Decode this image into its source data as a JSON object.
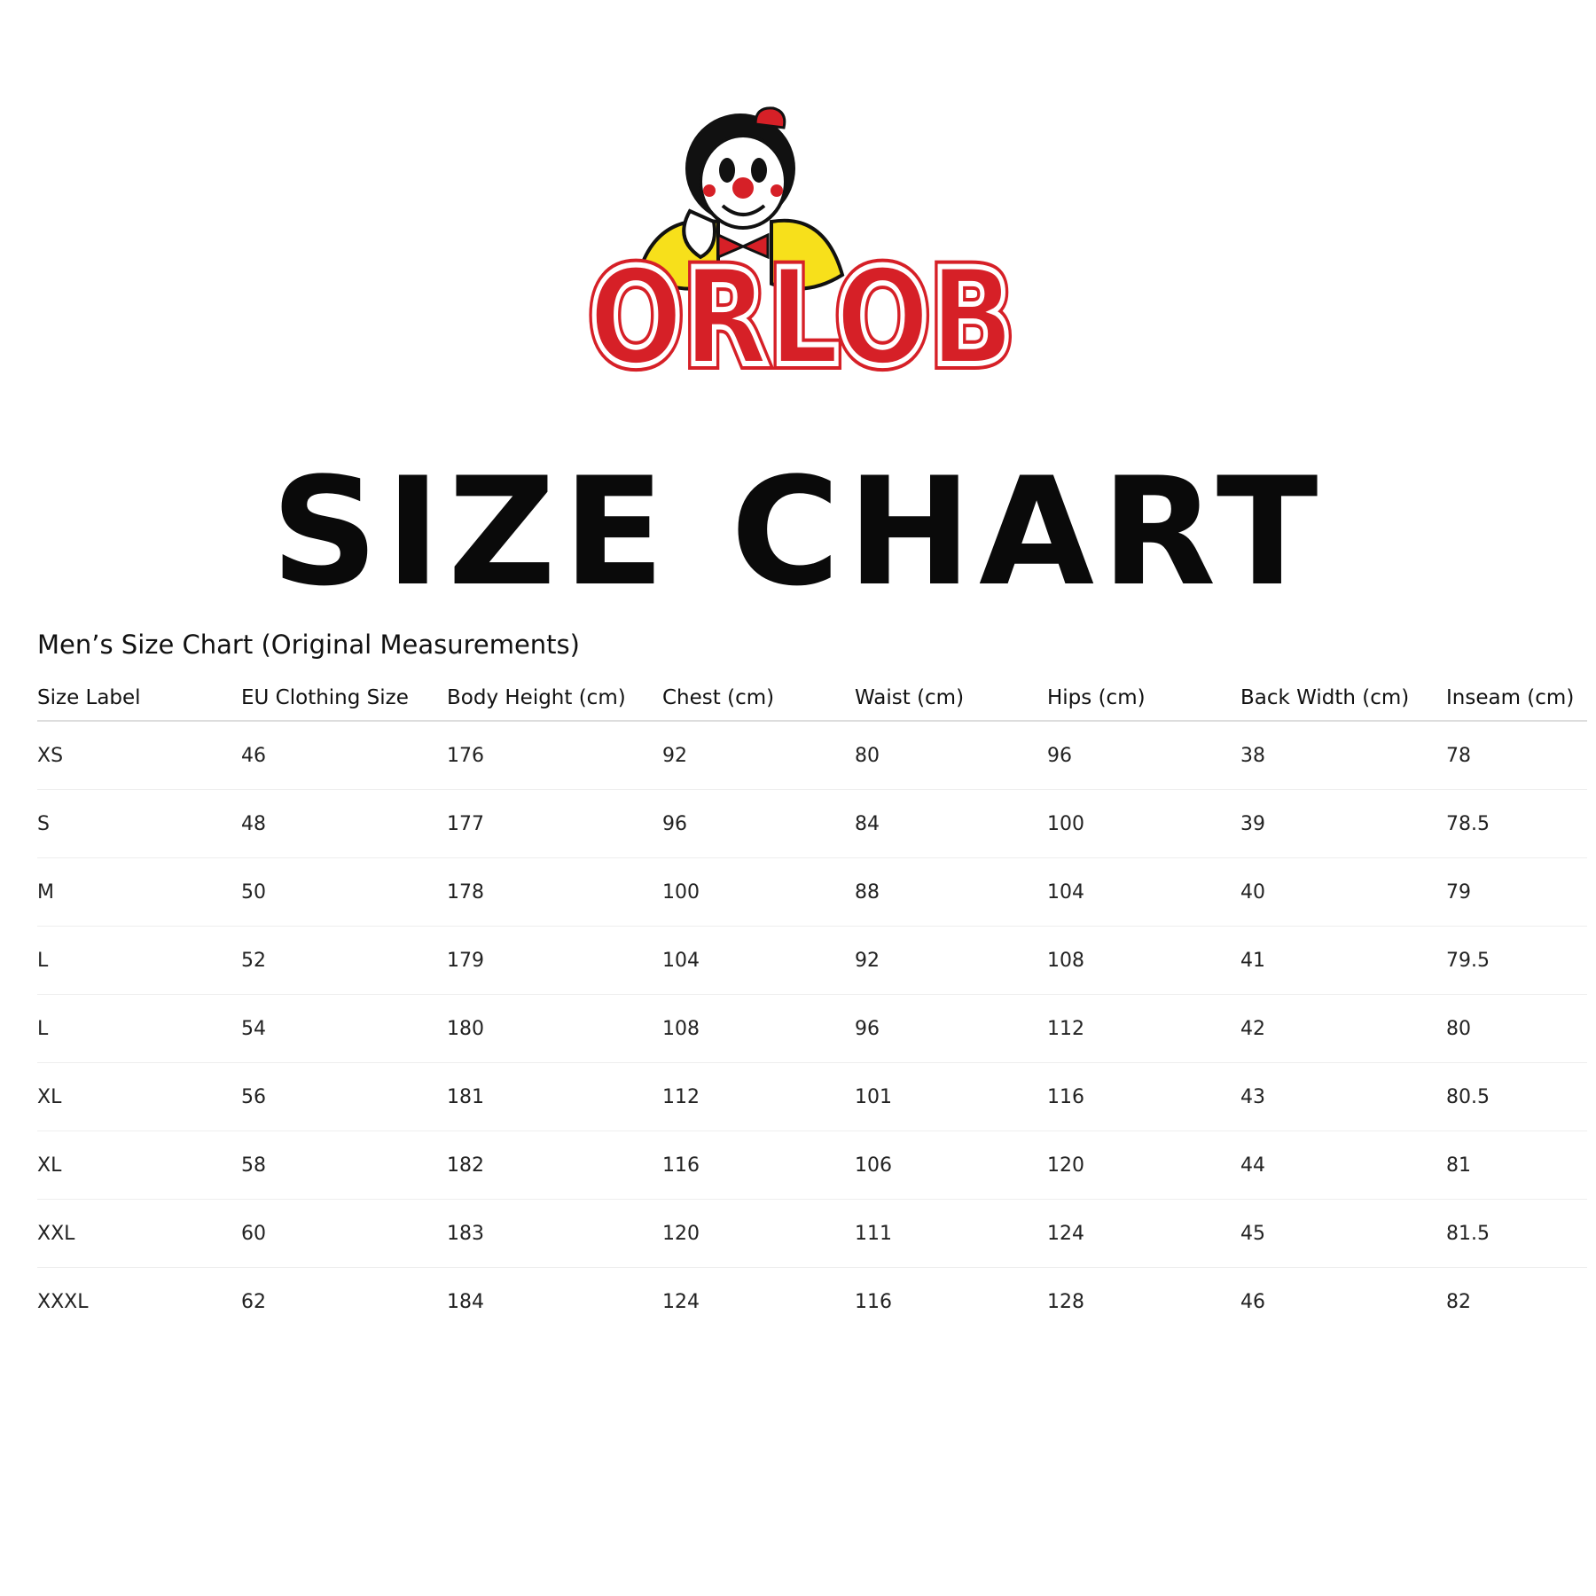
{
  "brand": {
    "logo_text": "ORLOB",
    "colors": {
      "red": "#d62027",
      "yellow": "#f7e01b",
      "black": "#111111"
    }
  },
  "title": "SIZE CHART",
  "subtitle": "Men’s Size Chart (Original Measurements)",
  "table": {
    "headers": [
      "Size Label",
      "EU Clothing Size",
      "Body Height (cm)",
      "Chest (cm)",
      "Waist (cm)",
      "Hips (cm)",
      "Back Width (cm)",
      "Inseam (cm)"
    ],
    "rows": [
      [
        "XS",
        "46",
        "176",
        "92",
        "80",
        "96",
        "38",
        "78"
      ],
      [
        "S",
        "48",
        "177",
        "96",
        "84",
        "100",
        "39",
        "78.5"
      ],
      [
        "M",
        "50",
        "178",
        "100",
        "88",
        "104",
        "40",
        "79"
      ],
      [
        "L",
        "52",
        "179",
        "104",
        "92",
        "108",
        "41",
        "79.5"
      ],
      [
        "L",
        "54",
        "180",
        "108",
        "96",
        "112",
        "42",
        "80"
      ],
      [
        "XL",
        "56",
        "181",
        "112",
        "101",
        "116",
        "43",
        "80.5"
      ],
      [
        "XL",
        "58",
        "182",
        "116",
        "106",
        "120",
        "44",
        "81"
      ],
      [
        "XXL",
        "60",
        "183",
        "120",
        "111",
        "124",
        "45",
        "81.5"
      ],
      [
        "XXXL",
        "62",
        "184",
        "124",
        "116",
        "128",
        "46",
        "82"
      ]
    ]
  }
}
